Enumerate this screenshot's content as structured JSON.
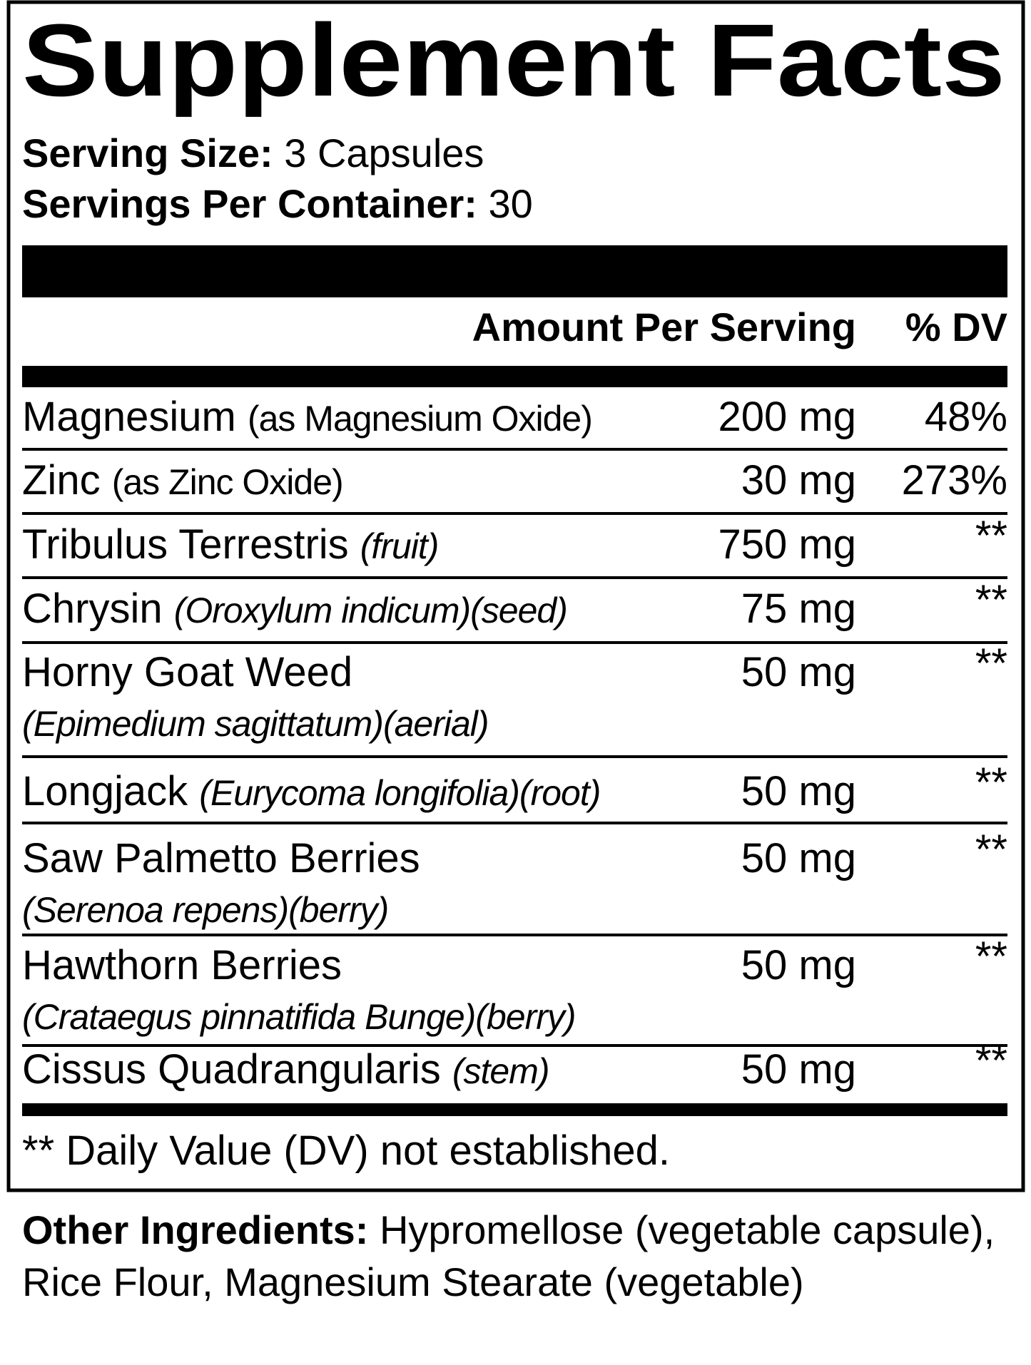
{
  "header": {
    "title": "Supplement Facts",
    "serving_size_label": "Serving Size:",
    "serving_size": "3 Capsules",
    "servings_label": "Servings Per Container:",
    "servings": "30"
  },
  "table": {
    "columns": [
      "Amount Per Serving",
      "% DV"
    ],
    "rows": [
      {
        "name": "Magnesium",
        "detail": "(as Magnesium Oxide)",
        "amount": "200 mg",
        "dv": "48%"
      },
      {
        "name": "Zinc",
        "detail": "(as Zinc Oxide)",
        "amount": "30 mg",
        "dv": "273%"
      },
      {
        "name": "Tribulus Terrestris",
        "detail": "(fruit)",
        "amount": "750 mg",
        "dv": "**"
      },
      {
        "name": "Chrysin",
        "detail": "(Oroxylum indicum)(seed)",
        "amount": "75 mg",
        "dv": "**"
      },
      {
        "name": "Horny Goat Weed",
        "detail": "(Epimedium sagittatum)(aerial)",
        "amount": "50 mg",
        "dv": "**"
      },
      {
        "name": "Longjack",
        "detail": "(Eurycoma longifolia)(root)",
        "amount": "50 mg",
        "dv": "**"
      },
      {
        "name": "Saw Palmetto Berries",
        "detail": "(Serenoa repens)(berry)",
        "amount": "50 mg",
        "dv": "**"
      },
      {
        "name": "Hawthorn Berries",
        "detail": "(Crataegus pinnatifida Bunge)(berry)",
        "amount": "50 mg",
        "dv": "**"
      },
      {
        "name": "Cissus Quadrangularis",
        "detail": "(stem)",
        "amount": "50 mg",
        "dv": "**"
      }
    ]
  },
  "footnote": "** Daily Value (DV) not established.",
  "other_ingredients": {
    "label": "Other Ingredients:",
    "text": "Hypromellose (vegetable capsule), Rice Flour, Magnesium Stearate (vegetable)"
  }
}
